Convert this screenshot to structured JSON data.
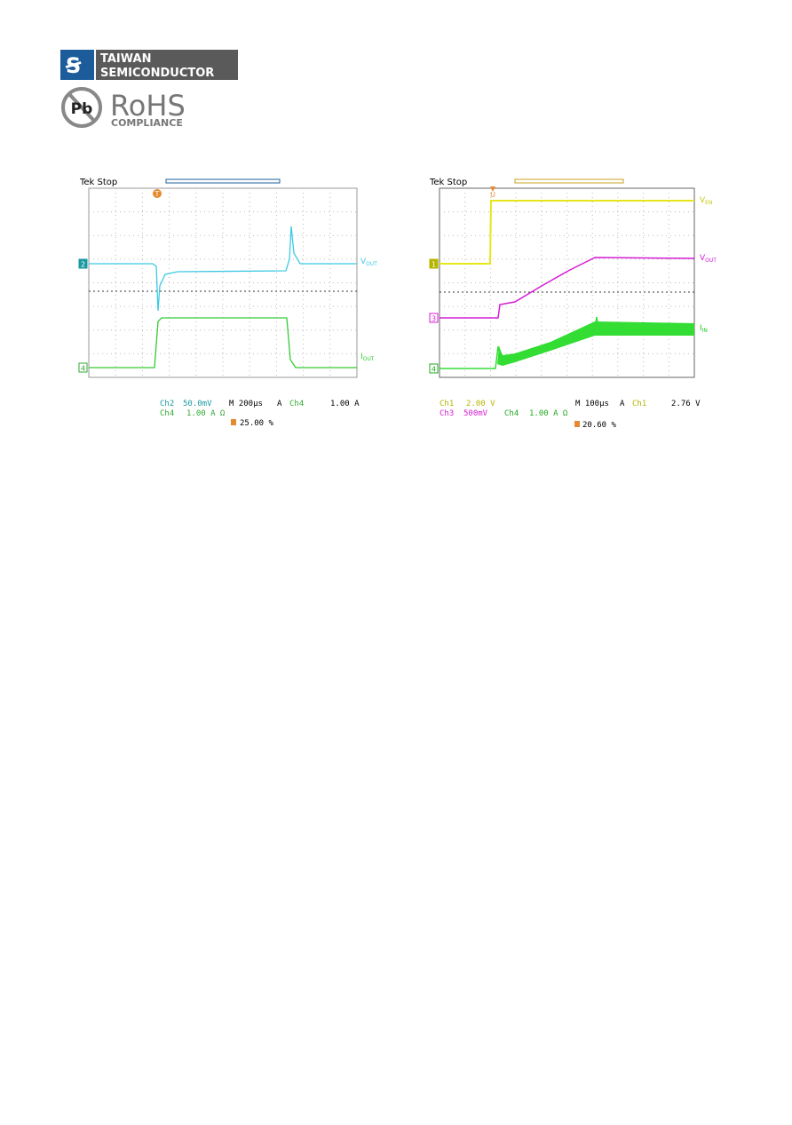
{
  "header": {
    "logo": {
      "line1": "TAIWAN",
      "line2": "SEMICONDUCTOR"
    },
    "rohs": {
      "badge": "Pb",
      "title": "RoHS",
      "subtitle": "COMPLIANCE"
    }
  },
  "scopes": [
    {
      "status": "Tek Stop",
      "labels": [
        {
          "main": "V",
          "sub": "OUT"
        },
        {
          "main": "I",
          "sub": "OUT"
        }
      ],
      "markers": [
        "2",
        "4"
      ],
      "trigger_marker": "T",
      "readout": {
        "row1": [
          "Ch2",
          "50.0mV",
          "M 200µs",
          "A",
          "Ch4",
          "1.00 A"
        ],
        "row2": [
          "Ch4",
          "1.00 A Ω"
        ],
        "row3": "25.00 %"
      }
    },
    {
      "status": "Tek Stop",
      "labels": [
        {
          "main": "V",
          "sub": "EN"
        },
        {
          "main": "V",
          "sub": "OUT"
        },
        {
          "main": "I",
          "sub": "IN"
        }
      ],
      "markers": [
        "1",
        "3",
        "4"
      ],
      "trigger_marker": "U",
      "readout": {
        "row1": [
          "Ch1",
          "2.00 V",
          "M 100µs",
          "A",
          "Ch1",
          "2.76 V"
        ],
        "row2": [
          "Ch3",
          "500mV",
          "Ch4",
          "1.00 A Ω"
        ],
        "row3": "20.60 %"
      }
    }
  ]
}
